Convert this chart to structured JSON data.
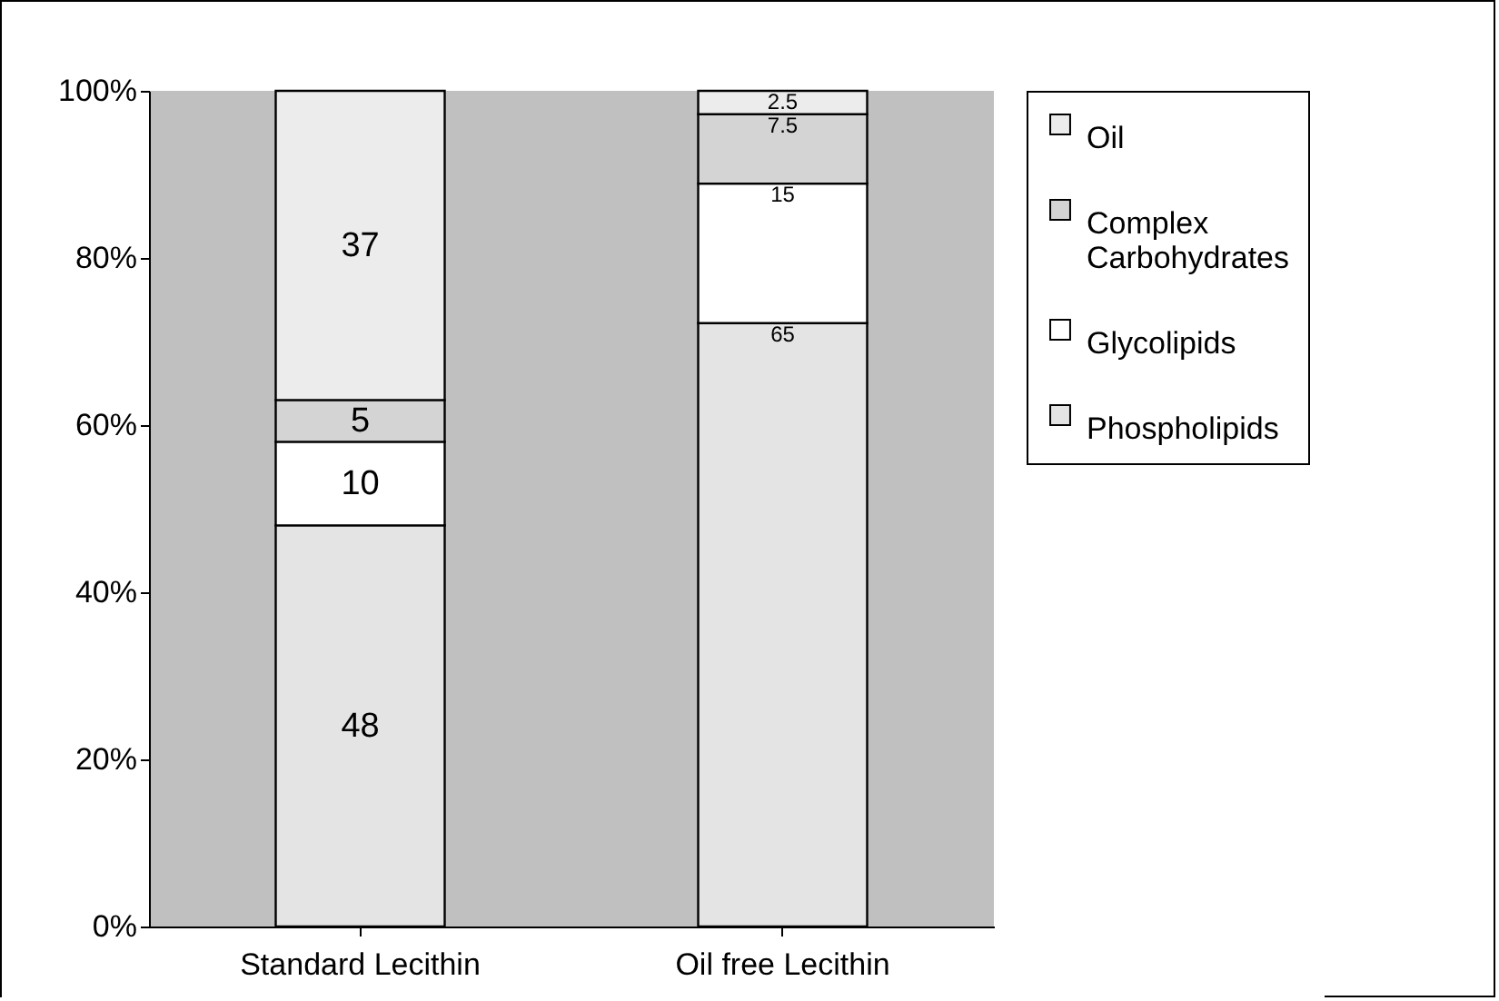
{
  "chart_data": {
    "type": "bar",
    "stacked": true,
    "categories": [
      "Standard Lecithin",
      "Oil free Lecithin"
    ],
    "series": [
      {
        "name": "Phospholipids",
        "color": "#e4e4e4",
        "values": [
          48,
          72.2
        ],
        "value_labels": [
          "48",
          null
        ]
      },
      {
        "name": "Glycolipids",
        "color": "#ffffff",
        "values": [
          10,
          16.7
        ],
        "value_labels": [
          "10",
          null
        ]
      },
      {
        "name": "Complex Carbohydrates",
        "color": "#d4d4d4",
        "values": [
          5,
          8.3
        ],
        "value_labels": [
          "5",
          null
        ]
      },
      {
        "name": "Oil",
        "color": "#ececec",
        "values": [
          37,
          2.8
        ],
        "value_labels": [
          "37",
          null
        ]
      }
    ],
    "annotations": [
      {
        "text": "65",
        "x": "Oil free Lecithin",
        "y": 72.2
      },
      {
        "text": "15",
        "x": "Oil free Lecithin",
        "y": 88.9
      },
      {
        "text": "7.5",
        "x": "Oil free Lecithin",
        "y": 97.2
      },
      {
        "text": "2.5",
        "x": "Oil free Lecithin",
        "y": 100
      }
    ],
    "ylim": [
      0,
      100
    ],
    "yticks": [
      {
        "value": 0,
        "label": "0%"
      },
      {
        "value": 20,
        "label": "20%"
      },
      {
        "value": 40,
        "label": "40%"
      },
      {
        "value": 60,
        "label": "60%"
      },
      {
        "value": 80,
        "label": "80%"
      },
      {
        "value": 100,
        "label": "100%"
      }
    ],
    "legend": "right"
  }
}
